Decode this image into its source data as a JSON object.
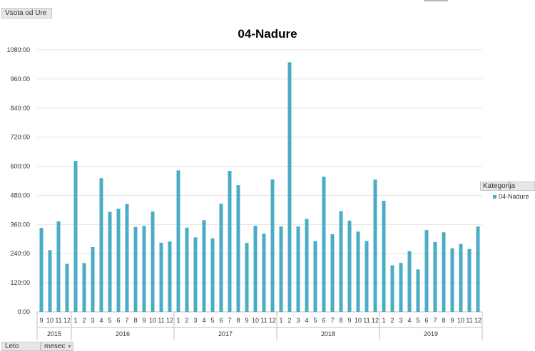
{
  "fields": {
    "values_field": "Vsota od Ure",
    "row_field_1": "Leto",
    "row_field_2": "mesec",
    "legend_field": "Kategorija"
  },
  "colors": {
    "series": "#4bacc6",
    "grid": "#e3e3e3",
    "axis": "#bfbfbf"
  },
  "chart_data": {
    "type": "bar",
    "title": "04-Nadure",
    "ylim": [
      0,
      1080
    ],
    "y_ticks": [
      "0:00",
      "120:00",
      "240:00",
      "360:00",
      "480:00",
      "600:00",
      "720:00",
      "840:00",
      "960:00",
      "1080:00"
    ],
    "legend_position": "right",
    "gridlines": true,
    "groups": [
      {
        "year": "2015",
        "months": [
          "9",
          "10",
          "11",
          "12"
        ]
      },
      {
        "year": "2016",
        "months": [
          "1",
          "2",
          "3",
          "4",
          "5",
          "6",
          "7",
          "8",
          "9",
          "10",
          "11",
          "12"
        ]
      },
      {
        "year": "2017",
        "months": [
          "1",
          "2",
          "3",
          "4",
          "5",
          "6",
          "7",
          "8",
          "9",
          "10",
          "11",
          "12"
        ]
      },
      {
        "year": "2018",
        "months": [
          "1",
          "2",
          "3",
          "4",
          "5",
          "6",
          "7",
          "8",
          "9",
          "10",
          "11",
          "12"
        ]
      },
      {
        "year": "2019",
        "months": [
          "1",
          "2",
          "3",
          "4",
          "5",
          "6",
          "7",
          "8",
          "9",
          "10",
          "11",
          "12"
        ]
      }
    ],
    "series": [
      {
        "name": "04-Nadure",
        "values": [
          346,
          254,
          373,
          198,
          622,
          201,
          267,
          551,
          412,
          425,
          445,
          350,
          354,
          413,
          285,
          290,
          583,
          347,
          307,
          378,
          303,
          446,
          581,
          522,
          284,
          355,
          322,
          546,
          352,
          1029,
          352,
          383,
          292,
          557,
          320,
          415,
          376,
          331,
          292,
          545,
          458,
          192,
          202,
          250,
          175,
          337,
          288,
          328,
          262,
          280,
          259,
          352
        ]
      }
    ]
  }
}
